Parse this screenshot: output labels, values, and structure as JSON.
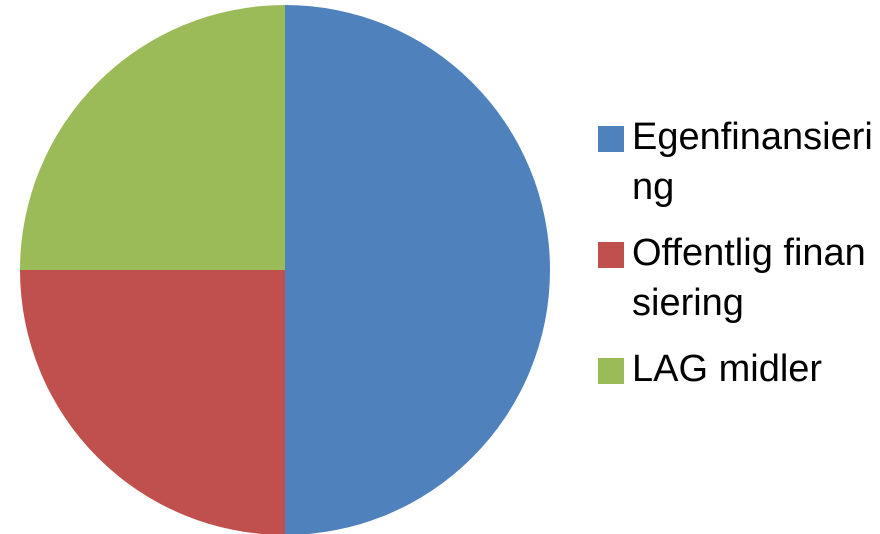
{
  "chart_data": {
    "type": "pie",
    "categories": [
      "Egenfinansiering",
      "Offentlig finansiering",
      "LAG midler"
    ],
    "values": [
      50,
      25,
      25
    ],
    "colors": [
      "#4f81bd",
      "#c0504d",
      "#9bbb59"
    ],
    "legend": "right"
  }
}
